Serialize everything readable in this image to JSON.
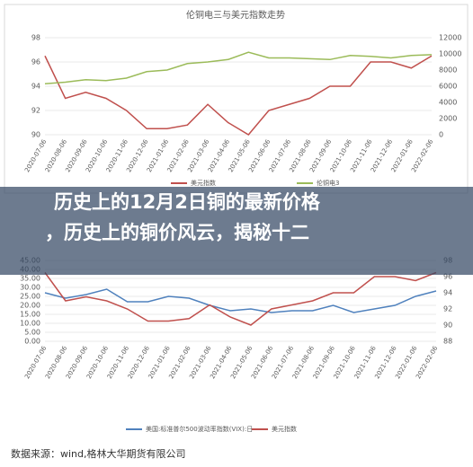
{
  "chart_data": [
    {
      "type": "line",
      "title": "伦铜电三与美元指数走势",
      "categories": [
        "2020-07-06",
        "2020-08-06",
        "2020-09-06",
        "2020-10-06",
        "2020-11-06",
        "2020-12-06",
        "2021-01-06",
        "2021-02-06",
        "2021-03-06",
        "2021-04-06",
        "2021-05-06",
        "2021-06-06",
        "2021-07-06",
        "2021-08-06",
        "2021-09-06",
        "2021-10-06",
        "2021-11-06",
        "2021-12-06",
        "2022-01-06",
        "2022-02-06"
      ],
      "ylim": [
        90,
        98
      ],
      "yticks": [
        90,
        92,
        94,
        96,
        98
      ],
      "y2lim": [
        0,
        12000
      ],
      "y2ticks": [
        0,
        2000,
        4000,
        6000,
        8000,
        10000,
        12000
      ],
      "series": [
        {
          "name": "美元指数",
          "color": "#c0504d",
          "values": [
            96.5,
            93,
            93.5,
            93,
            92,
            90.5,
            90.5,
            90.8,
            92.5,
            91,
            90,
            92,
            92.5,
            93,
            94,
            94,
            96,
            96,
            95.5,
            96.5
          ]
        },
        {
          "name": "伦铜电3",
          "color": "#9bbb59",
          "axis": "y2",
          "values": [
            6300,
            6500,
            6800,
            6700,
            7000,
            7800,
            8000,
            8800,
            9000,
            9300,
            10200,
            9500,
            9500,
            9400,
            9300,
            9800,
            9700,
            9500,
            9800,
            9900
          ]
        }
      ]
    },
    {
      "type": "line",
      "categories": [
        "2020-07-06",
        "2020-08-06",
        "2020-09-06",
        "2020-10-06",
        "2020-11-06",
        "2020-12-06",
        "2021-01-06",
        "2021-02-06",
        "2021-03-06",
        "2021-04-06",
        "2021-05-06",
        "2021-06-06",
        "2021-07-06",
        "2021-08-06",
        "2021-09-06",
        "2021-10-06",
        "2021-11-06",
        "2021-12-06",
        "2022-01-06",
        "2022-02-06"
      ],
      "ylim": [
        0,
        45
      ],
      "yticks": [
        {
          "value": 0,
          "label": "0.00"
        },
        {
          "value": 5,
          "label": "5.00"
        },
        {
          "value": 10,
          "label": "10.00"
        },
        {
          "value": 15,
          "label": "15.00"
        },
        {
          "value": 20,
          "label": "20.00"
        },
        {
          "value": 25,
          "label": "25.00"
        },
        {
          "value": 30,
          "label": "30.00"
        },
        {
          "value": 35,
          "label": "35.00"
        },
        {
          "value": 40,
          "label": "40.00"
        },
        {
          "value": 45,
          "label": "45.00"
        }
      ],
      "y2lim": [
        88,
        98
      ],
      "y2ticks": [
        88,
        90,
        92,
        94,
        96,
        98
      ],
      "series": [
        {
          "name": "美国:标准普尔500波动率指数(VIX):日",
          "color": "#4f81bd",
          "values": [
            27,
            24,
            26,
            29,
            22,
            22,
            25,
            24,
            20,
            17,
            18,
            16,
            17,
            17,
            20,
            16,
            18,
            20,
            25,
            28
          ]
        },
        {
          "name": "美元指数",
          "color": "#c0504d",
          "axis": "y2",
          "values": [
            96.5,
            93,
            93.5,
            93,
            92,
            90.5,
            90.5,
            90.8,
            92.5,
            91,
            90,
            92,
            92.5,
            93,
            94,
            94,
            96,
            96,
            95.5,
            96.5
          ]
        }
      ]
    }
  ],
  "banner": [
    "历史上的12月2日铜的最新价格",
    "，历史上的铜价风云，揭秘十二"
  ],
  "source": "数据来源：wind,格林大华期货有限公司"
}
